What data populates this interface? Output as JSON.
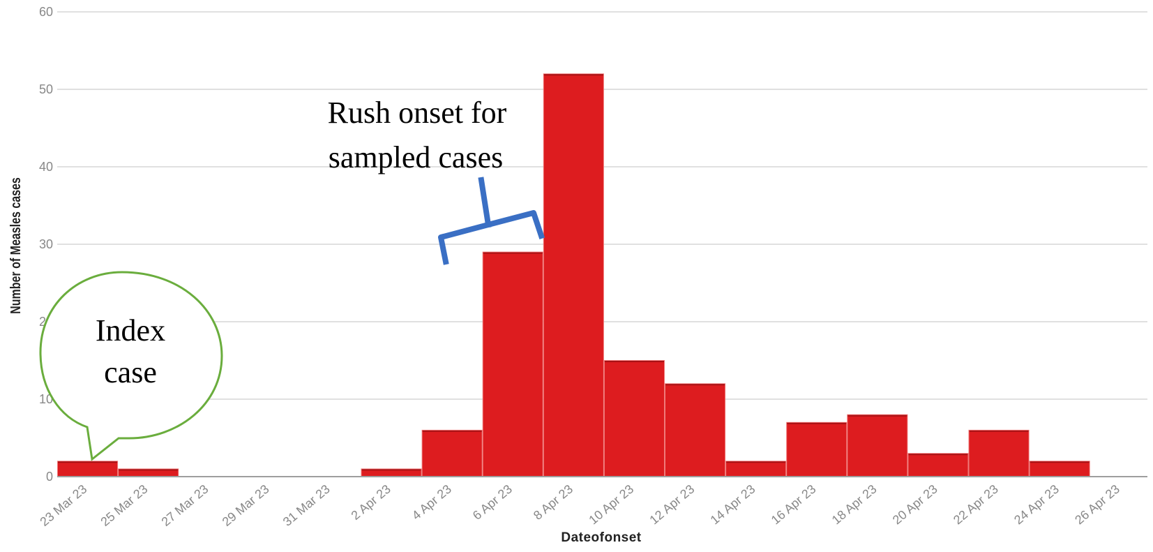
{
  "chart_data": {
    "type": "bar",
    "xlabel": "Dateofonset",
    "ylabel": "Number of Measles cases",
    "ylim": [
      0,
      60
    ],
    "yticks": [
      0,
      10,
      20,
      30,
      40,
      50,
      60
    ],
    "categories": [
      "23 Mar 23",
      "25 Mar 23",
      "27 Mar 23",
      "29 Mar 23",
      "31 Mar 23",
      "2 Apr 23",
      "4 Apr 23",
      "6 Apr 23",
      "8 Apr 23",
      "10 Apr 23",
      "12 Apr 23",
      "14 Apr 23",
      "16 Apr 23",
      "18 Apr 23",
      "20 Apr 23",
      "22 Apr 23",
      "24 Apr 23",
      "26 Apr 23"
    ],
    "values": [
      2,
      1,
      0,
      0,
      0,
      1,
      6,
      29,
      52,
      15,
      12,
      2,
      7,
      8,
      3,
      6,
      2,
      0
    ],
    "grid": true,
    "bar_color": "#dd1c1f",
    "annotations": [
      {
        "text_lines": [
          "Index",
          "case"
        ],
        "callout": "speech-bubble",
        "color": "#6aad3d",
        "points_to": "23 Mar 23"
      },
      {
        "text_lines": [
          "Rush onset for",
          "sampled cases"
        ],
        "callout": "brace",
        "color": "#3a6fc4",
        "spans": [
          "6 Apr 23",
          "8 Apr 23"
        ]
      }
    ]
  }
}
